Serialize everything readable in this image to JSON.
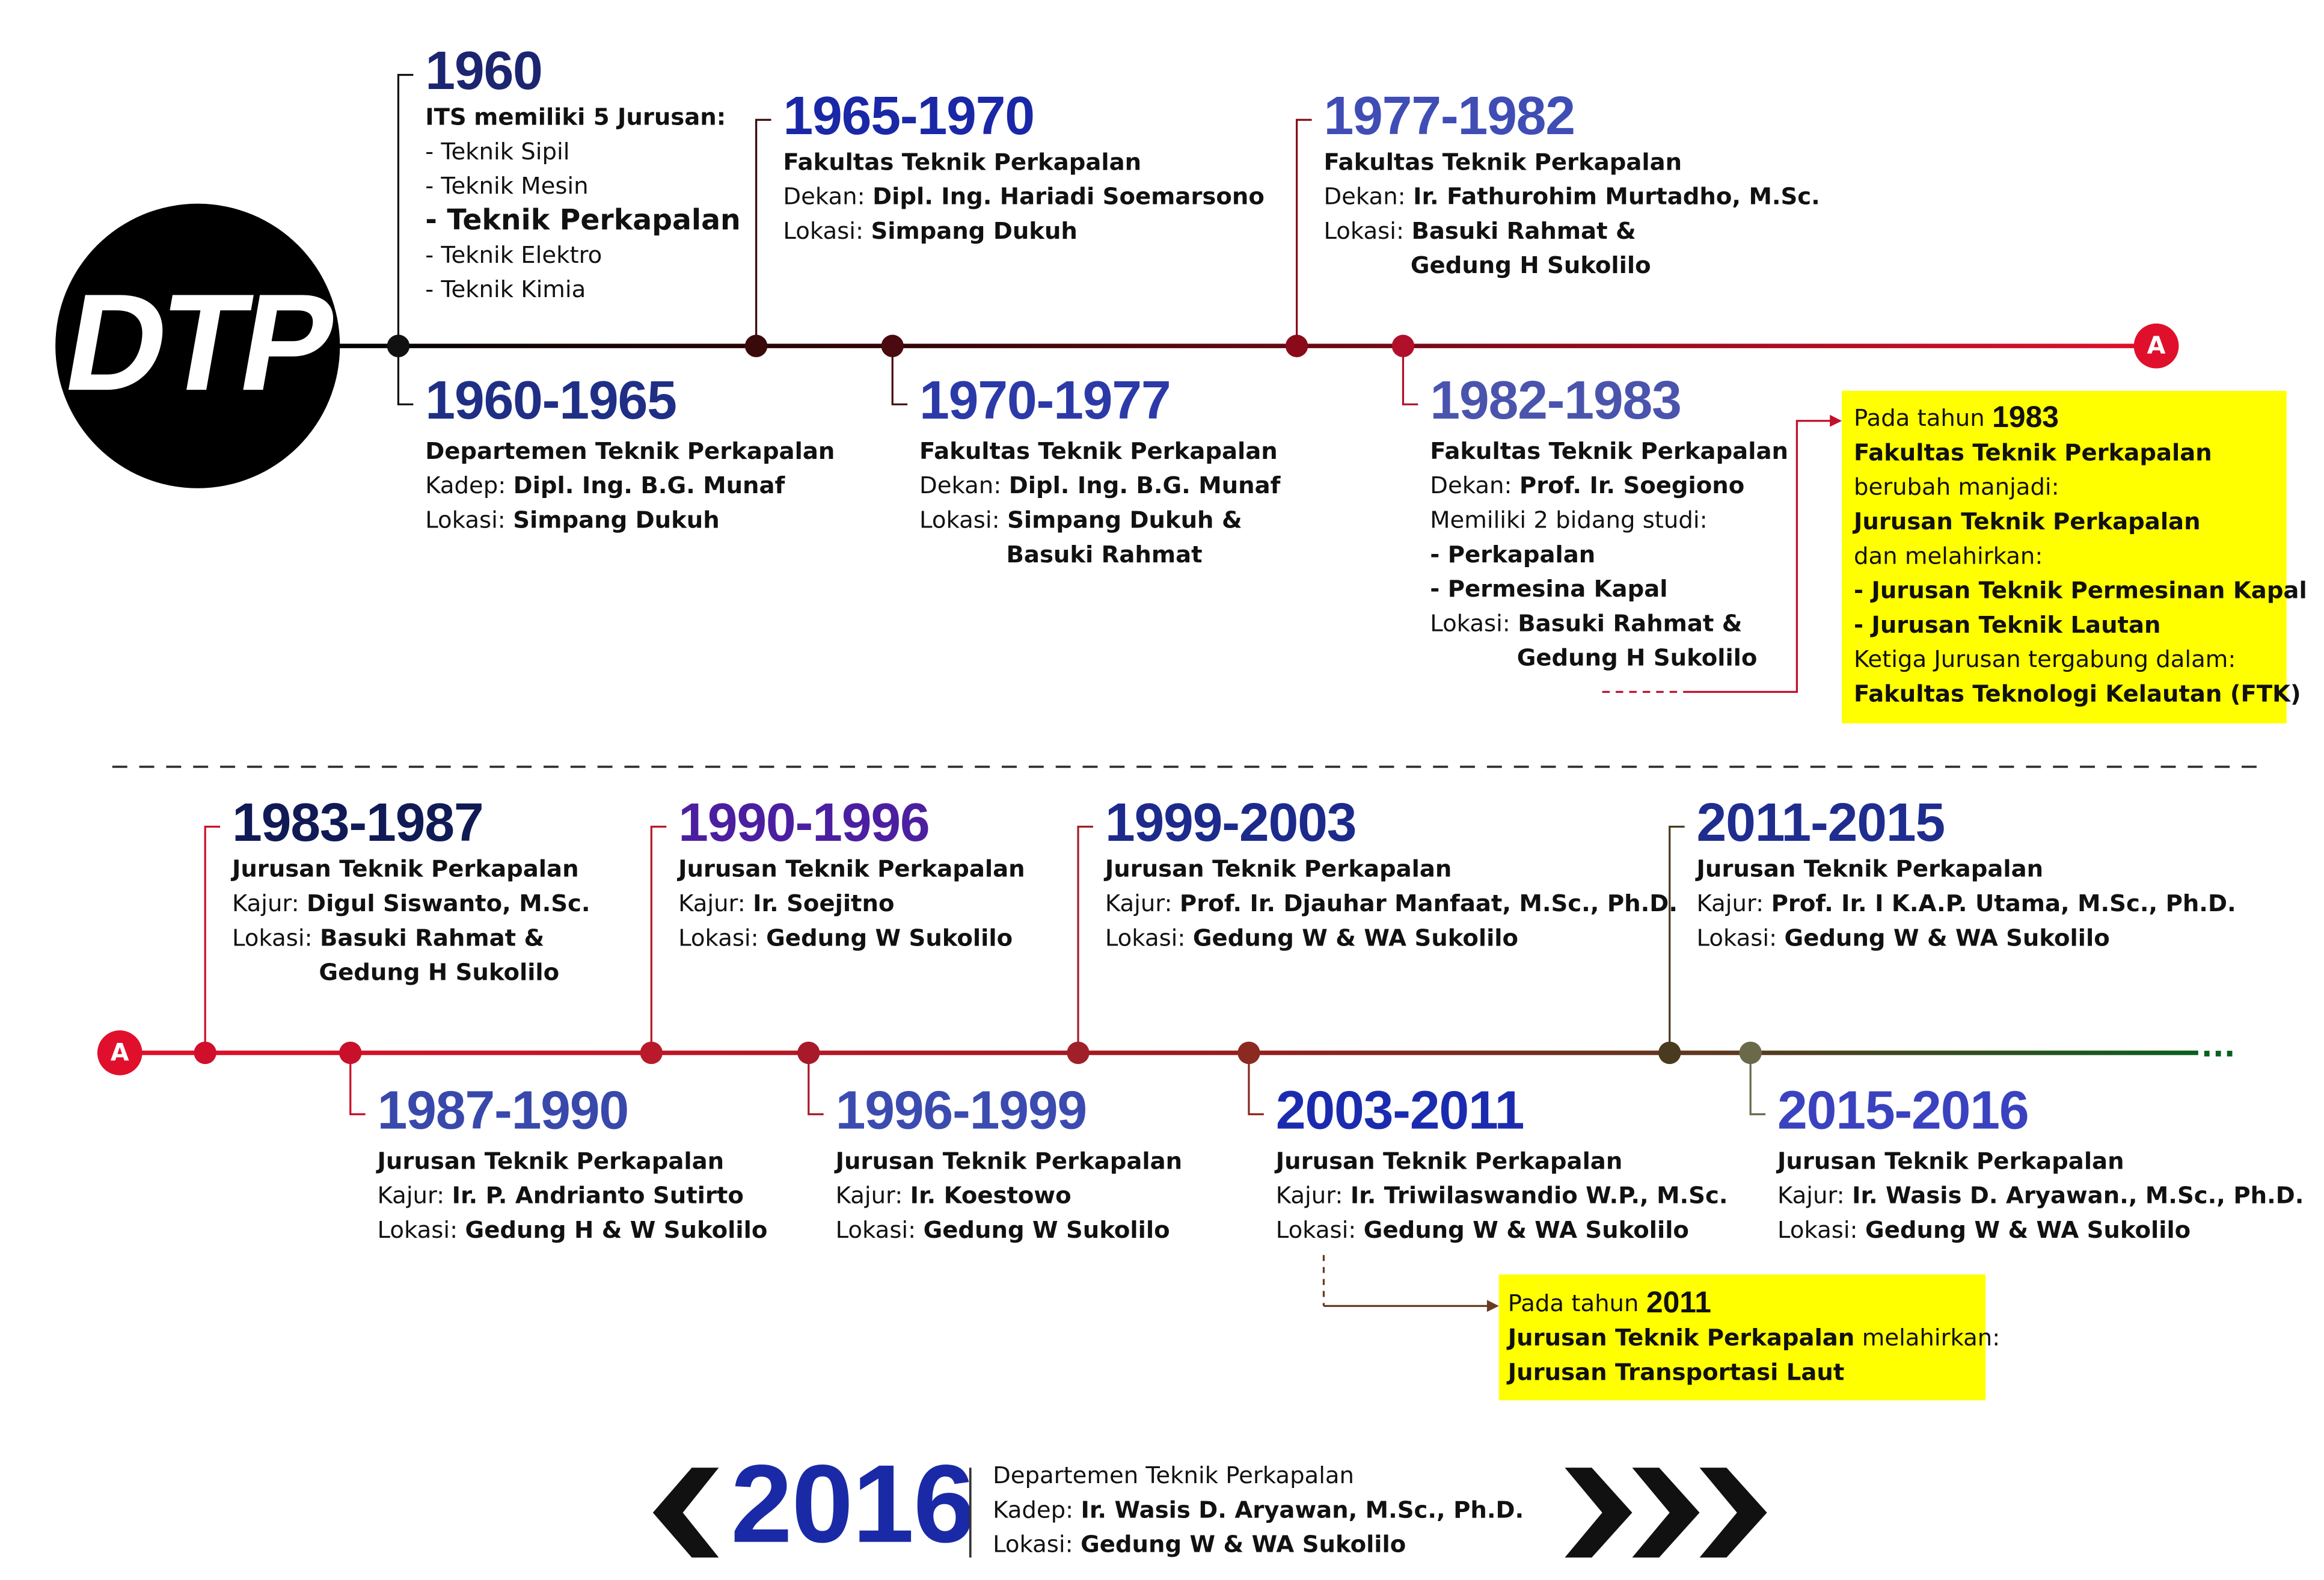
{
  "logo": "DTP",
  "timelines": [
    {
      "end_marker": "A",
      "events": [
        {
          "year": "1960",
          "color": "#1c2570",
          "lines": [
            [
              {
                "text": "ITS",
                "bold": true
              },
              {
                "text": "memiliki 5 Jurusan:"
              }
            ],
            [
              {
                "text": "- Teknik Sipil"
              }
            ],
            [
              {
                "text": "- Teknik Mesin"
              }
            ],
            [
              {
                "text": "- Teknik Perkapalan",
                "emphasis": true
              }
            ],
            [
              {
                "text": "- Teknik Elektro"
              }
            ],
            [
              {
                "text": "- Teknik Kimia"
              }
            ]
          ]
        },
        {
          "year": "1960-1965",
          "color": "#1f2f85",
          "lines": [
            [
              {
                "text": "Departemen Teknik Perkapalan"
              }
            ],
            [
              {
                "text": "Kadep:"
              },
              {
                "text": "Dipl. Ing. B.G. Munaf",
                "bold": true
              }
            ],
            [
              {
                "text": "Lokasi:"
              },
              {
                "text": "Simpang Dukuh",
                "bold": true
              }
            ]
          ]
        },
        {
          "year": "1965-1970",
          "color": "#1a27a6",
          "lines": [
            [
              {
                "text": "Fakultas Teknik Perkapalan"
              }
            ],
            [
              {
                "text": "Dekan:"
              },
              {
                "text": "Dipl. Ing. Hariadi Soemarsono",
                "bold": true
              }
            ],
            [
              {
                "text": "Lokasi:"
              },
              {
                "text": "Simpang Dukuh",
                "bold": true
              }
            ]
          ]
        },
        {
          "year": "1970-1977",
          "color": "#2b3aa8",
          "lines": [
            [
              {
                "text": "Fakultas Teknik Perkapalan"
              }
            ],
            [
              {
                "text": "Dekan:"
              },
              {
                "text": "Dipl. Ing. B.G. Munaf",
                "bold": true
              }
            ],
            [
              {
                "text": "Lokasi:"
              },
              {
                "text": "Simpang Dukuh &",
                "bold": true
              }
            ],
            [
              {
                "text": "Basuki Rahmat",
                "bold": true,
                "indent": true
              }
            ]
          ]
        },
        {
          "year": "1977-1982",
          "color": "#3f4db5",
          "lines": [
            [
              {
                "text": "Fakultas Teknik Perkapalan"
              }
            ],
            [
              {
                "text": "Dekan:"
              },
              {
                "text": "Ir. Fathurohim Murtadho, M.Sc.",
                "bold": true
              }
            ],
            [
              {
                "text": "Lokasi:"
              },
              {
                "text": "Basuki Rahmat &",
                "bold": true
              }
            ],
            [
              {
                "text": "Gedung H Sukolilo",
                "bold": true,
                "indent": true
              }
            ]
          ]
        },
        {
          "year": "1982-1983",
          "color": "#4a54ad",
          "lines": [
            [
              {
                "text": "Fakultas Teknik Perkapalan"
              }
            ],
            [
              {
                "text": "Dekan:"
              },
              {
                "text": "Prof. Ir. Soegiono",
                "bold": true
              }
            ],
            [
              {
                "text": "Memiliki 2 bidang studi:"
              }
            ],
            [
              {
                "text": "- Perkapalan",
                "bold": true
              }
            ],
            [
              {
                "text": "- Permesina Kapal",
                "bold": true
              }
            ],
            [
              {
                "text": "Lokasi:"
              },
              {
                "text": "Basuki Rahmat &",
                "bold": true
              }
            ],
            [
              {
                "text": "Gedung H Sukolilo",
                "bold": true,
                "indent": true
              }
            ]
          ]
        }
      ]
    },
    {
      "start_marker": "A",
      "events": [
        {
          "year": "1983-1987",
          "color": "#101a55",
          "lines": [
            [
              {
                "text": "Jurusan Teknik Perkapalan"
              }
            ],
            [
              {
                "text": "Kajur:"
              },
              {
                "text": "Digul Siswanto, M.Sc.",
                "bold": true
              }
            ],
            [
              {
                "text": "Lokasi:"
              },
              {
                "text": "Basuki Rahmat &",
                "bold": true
              }
            ],
            [
              {
                "text": "Gedung H Sukolilo",
                "bold": true,
                "indent": true
              }
            ]
          ]
        },
        {
          "year": "1987-1990",
          "color": "#3848ab",
          "lines": [
            [
              {
                "text": "Jurusan Teknik Perkapalan"
              }
            ],
            [
              {
                "text": "Kajur:"
              },
              {
                "text": "Ir. P. Andrianto Sutirto",
                "bold": true
              }
            ],
            [
              {
                "text": "Lokasi:"
              },
              {
                "text": "Gedung H & W Sukolilo",
                "bold": true
              }
            ]
          ]
        },
        {
          "year": "1990-1996",
          "color": "#4b1fa0",
          "lines": [
            [
              {
                "text": "Jurusan Teknik Perkapalan"
              }
            ],
            [
              {
                "text": "Kajur:"
              },
              {
                "text": "Ir. Soejitno",
                "bold": true
              }
            ],
            [
              {
                "text": "Lokasi:"
              },
              {
                "text": "Gedung W Sukolilo",
                "bold": true
              }
            ]
          ]
        },
        {
          "year": "1996-1999",
          "color": "#3b4bb0",
          "lines": [
            [
              {
                "text": "Jurusan Teknik Perkapalan"
              }
            ],
            [
              {
                "text": "Kajur:"
              },
              {
                "text": "Ir. Koestowo",
                "bold": true
              }
            ],
            [
              {
                "text": "Lokasi:"
              },
              {
                "text": "Gedung W Sukolilo",
                "bold": true
              }
            ]
          ]
        },
        {
          "year": "1999-2003",
          "color": "#1c2a8c",
          "lines": [
            [
              {
                "text": "Jurusan Teknik Perkapalan"
              }
            ],
            [
              {
                "text": "Kajur:"
              },
              {
                "text": "Prof. Ir. Djauhar Manfaat, M.Sc., Ph.D.",
                "bold": true
              }
            ],
            [
              {
                "text": "Lokasi:"
              },
              {
                "text": "Gedung W & WA Sukolilo",
                "bold": true
              }
            ]
          ]
        },
        {
          "year": "2003-2011",
          "color": "#1b2bb0",
          "lines": [
            [
              {
                "text": "Jurusan Teknik Perkapalan"
              }
            ],
            [
              {
                "text": "Kajur:"
              },
              {
                "text": "Ir. Triwilaswandio W.P., M.Sc.",
                "bold": true
              }
            ],
            [
              {
                "text": "Lokasi:"
              },
              {
                "text": "Gedung W & WA Sukolilo",
                "bold": true
              }
            ]
          ]
        },
        {
          "year": "2011-2015",
          "color": "#1f2d8f",
          "lines": [
            [
              {
                "text": "Jurusan Teknik Perkapalan"
              }
            ],
            [
              {
                "text": "Kajur:"
              },
              {
                "text": "Prof. Ir. I K.A.P. Utama, M.Sc., Ph.D.",
                "bold": true
              }
            ],
            [
              {
                "text": "Lokasi:"
              },
              {
                "text": "Gedung W & WA Sukolilo",
                "bold": true
              }
            ]
          ]
        },
        {
          "year": "2015-2016",
          "color": "#3a42c0",
          "lines": [
            [
              {
                "text": "Jurusan Teknik Perkapalan"
              }
            ],
            [
              {
                "text": "Kajur:"
              },
              {
                "text": "Ir. Wasis D. Aryawan., M.Sc., Ph.D.",
                "bold": true
              }
            ],
            [
              {
                "text": "Lokasi:"
              },
              {
                "text": "Gedung W & WA Sukolilo",
                "bold": true
              }
            ]
          ]
        }
      ]
    }
  ],
  "notes": [
    {
      "lines": [
        [
          {
            "text": "Pada tahun"
          },
          {
            "text": "1983",
            "year": true
          }
        ],
        [
          {
            "text": "Fakultas Teknik Perkapalan",
            "bold": true
          }
        ],
        [
          {
            "text": "berubah manjadi:"
          }
        ],
        [
          {
            "text": "Jurusan Teknik Perkapalan",
            "bold": true
          }
        ],
        [
          {
            "text": "dan melahirkan:"
          }
        ],
        [
          {
            "text": "- Jurusan Teknik Permesinan Kapal",
            "bold": true
          }
        ],
        [
          {
            "text": "- Jurusan Teknik Lautan",
            "bold": true
          }
        ],
        [
          {
            "text": "Ketiga Jurusan tergabung dalam:"
          }
        ],
        [
          {
            "text": "Fakultas Teknologi Kelautan (FTK)",
            "bold": true
          }
        ]
      ]
    },
    {
      "lines": [
        [
          {
            "text": "Pada tahun"
          },
          {
            "text": "2011",
            "year": true
          }
        ],
        [
          {
            "text": "Jurusan Teknik Perkapalan",
            "bold": true
          },
          {
            "text": "melahirkan:"
          }
        ],
        [
          {
            "text": "Jurusan Transportasi Laut",
            "bold": true
          }
        ]
      ]
    }
  ],
  "current": {
    "year": "2016",
    "lines": [
      [
        {
          "text": "Departemen Teknik Perkapalan"
        }
      ],
      [
        {
          "text": "Kadep:"
        },
        {
          "text": "Ir. Wasis D. Aryawan, M.Sc., Ph.D.",
          "bold": true
        }
      ],
      [
        {
          "text": "Lokasi:"
        },
        {
          "text": "Gedung W & WA Sukolilo",
          "bold": true
        }
      ]
    ]
  }
}
